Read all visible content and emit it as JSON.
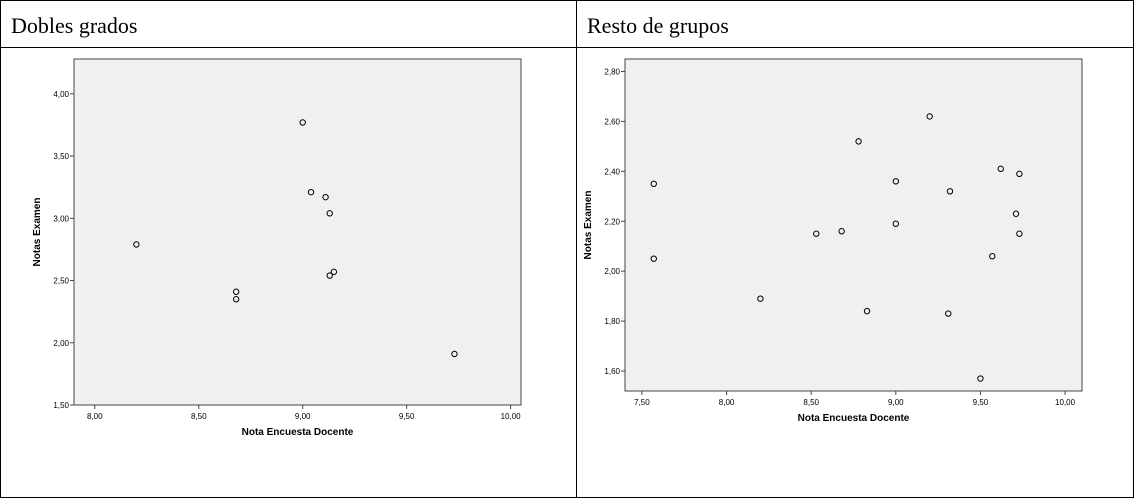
{
  "panels": [
    {
      "title": "Dobles grados"
    },
    {
      "title": "Resto de grupos"
    }
  ],
  "chart_data": [
    {
      "type": "scatter",
      "title": "",
      "xlabel": "Nota Encuesta Docente",
      "ylabel": "Notas Examen",
      "xlim": [
        7.9,
        10.05
      ],
      "ylim": [
        1.5,
        4.28
      ],
      "xticks": [
        8.0,
        8.5,
        9.0,
        9.5,
        10.0
      ],
      "xtick_labels": [
        "8,00",
        "8,50",
        "9,00",
        "9,50",
        "10,00"
      ],
      "yticks": [
        1.5,
        2.0,
        2.5,
        3.0,
        3.5,
        4.0
      ],
      "ytick_labels": [
        "1,50",
        "2,00",
        "2,50",
        "3,00",
        "3,50",
        "4,00"
      ],
      "grid": false,
      "points": [
        {
          "x": 8.2,
          "y": 2.79
        },
        {
          "x": 8.68,
          "y": 2.41
        },
        {
          "x": 8.68,
          "y": 2.35
        },
        {
          "x": 9.0,
          "y": 3.77
        },
        {
          "x": 9.04,
          "y": 3.21
        },
        {
          "x": 9.11,
          "y": 3.17
        },
        {
          "x": 9.13,
          "y": 3.04
        },
        {
          "x": 9.13,
          "y": 2.54
        },
        {
          "x": 9.15,
          "y": 2.57
        },
        {
          "x": 9.73,
          "y": 1.91
        }
      ]
    },
    {
      "type": "scatter",
      "title": "",
      "xlabel": "Nota Encuesta Docente",
      "ylabel": "Notas Examen",
      "xlim": [
        7.4,
        10.1
      ],
      "ylim": [
        1.52,
        2.85
      ],
      "xticks": [
        7.5,
        8.0,
        8.5,
        9.0,
        9.5,
        10.0
      ],
      "xtick_labels": [
        "7,50",
        "8,00",
        "8,50",
        "9,00",
        "9,50",
        "10,00"
      ],
      "yticks": [
        1.6,
        1.8,
        2.0,
        2.2,
        2.4,
        2.6,
        2.8
      ],
      "ytick_labels": [
        "1,60",
        "1,80",
        "2,00",
        "2,20",
        "2,40",
        "2,60",
        "2,80"
      ],
      "grid": false,
      "points": [
        {
          "x": 7.57,
          "y": 2.35
        },
        {
          "x": 7.57,
          "y": 2.05
        },
        {
          "x": 8.2,
          "y": 1.89
        },
        {
          "x": 8.53,
          "y": 2.15
        },
        {
          "x": 8.68,
          "y": 2.16
        },
        {
          "x": 8.78,
          "y": 2.52
        },
        {
          "x": 8.83,
          "y": 1.84
        },
        {
          "x": 9.0,
          "y": 2.36
        },
        {
          "x": 9.0,
          "y": 2.19
        },
        {
          "x": 9.2,
          "y": 2.62
        },
        {
          "x": 9.31,
          "y": 1.83
        },
        {
          "x": 9.32,
          "y": 2.32
        },
        {
          "x": 9.5,
          "y": 1.57
        },
        {
          "x": 9.57,
          "y": 2.06
        },
        {
          "x": 9.62,
          "y": 2.41
        },
        {
          "x": 9.71,
          "y": 2.23
        },
        {
          "x": 9.73,
          "y": 2.39
        },
        {
          "x": 9.73,
          "y": 2.15
        }
      ]
    }
  ]
}
